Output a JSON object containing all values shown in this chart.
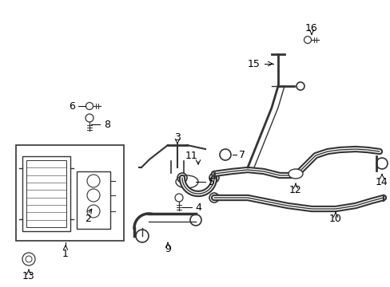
{
  "background_color": "#ffffff",
  "figure_size": [
    4.89,
    3.6
  ],
  "dpi": 100,
  "part_color": "#333333",
  "label_fontsize": 9,
  "line_color": "#333333"
}
